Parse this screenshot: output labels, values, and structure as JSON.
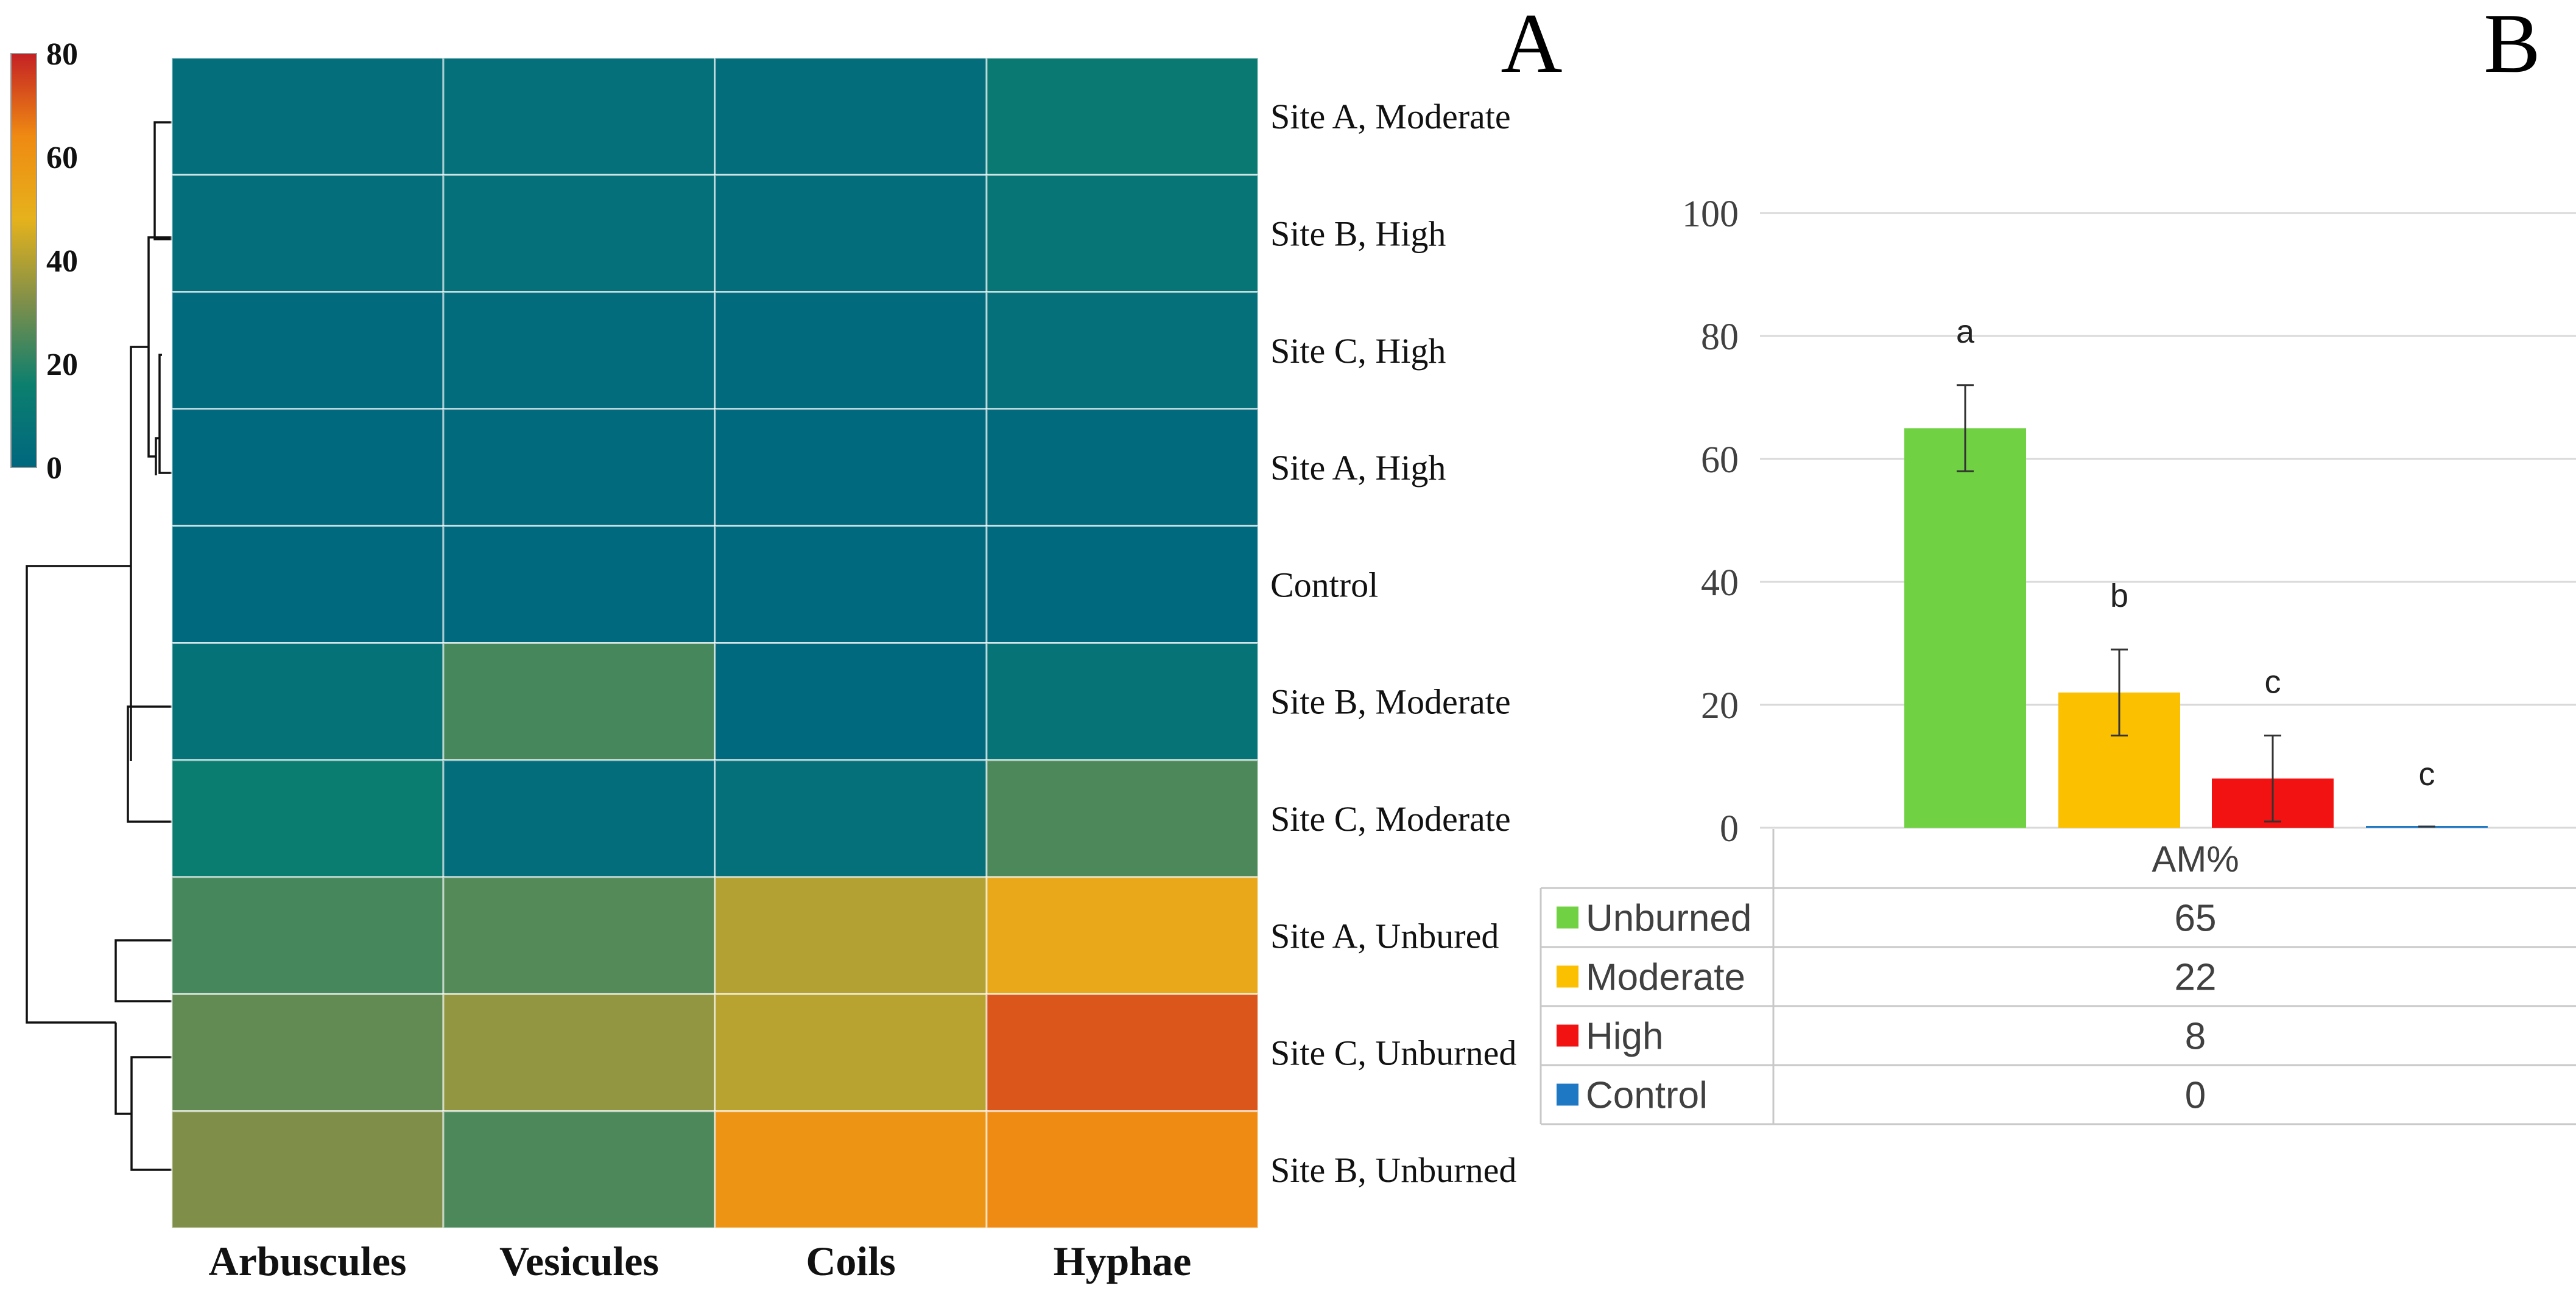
{
  "chart_data": [
    {
      "type": "heatmap",
      "panel_label": "A",
      "rows": [
        "Site A, Moderate",
        "Site B, High",
        "Site C, High",
        "Site A, High",
        "Control",
        "Site B, Moderate",
        "Site C, Moderate",
        "Site A, Unbured",
        "Site C, Unburned",
        "Site B, Unburned"
      ],
      "columns": [
        "Arbuscules",
        "Vesicules",
        "Coils",
        "Hyphae"
      ],
      "values": [
        [
          5,
          6,
          4,
          12
        ],
        [
          5,
          6,
          4,
          9
        ],
        [
          2,
          3,
          2,
          6
        ],
        [
          1,
          2,
          1,
          2
        ],
        [
          1,
          1,
          1,
          1
        ],
        [
          7,
          24,
          1,
          8
        ],
        [
          14,
          4,
          6,
          25
        ],
        [
          24,
          26,
          40,
          52
        ],
        [
          28,
          35,
          41,
          72
        ],
        [
          32,
          25,
          60,
          64
        ]
      ],
      "colorbar": {
        "min": 0,
        "max": 80,
        "ticks": [
          "80",
          "60",
          "40",
          "20",
          "0"
        ],
        "tick_values": [
          80,
          60,
          40,
          20,
          0
        ],
        "stops": [
          "#00677f",
          "#0c7f6e",
          "#7f8f4a",
          "#e6b21c",
          "#ef8a12",
          "#c42124"
        ]
      },
      "dendrogram": "rows, left side"
    },
    {
      "type": "bar",
      "panel_label": "B",
      "categories": [
        "Unburned",
        "Moderate",
        "High",
        "Control"
      ],
      "values": [
        65,
        22,
        8,
        0
      ],
      "value_labels": [
        "65",
        "22",
        "8",
        "0"
      ],
      "errors": [
        7,
        7,
        7,
        0
      ],
      "significance_letters": [
        "a",
        "b",
        "c",
        "c"
      ],
      "colors": [
        "#70d243",
        "#fbc000",
        "#f31212",
        "#1f78c4"
      ],
      "ylim": [
        0,
        100
      ],
      "yticks": [
        "0",
        "20",
        "40",
        "60",
        "80",
        "100"
      ],
      "ytick_values": [
        0,
        20,
        40,
        60,
        80,
        100
      ],
      "grid": true,
      "table_header": "AM%",
      "legend_placement": "data table below bars"
    }
  ]
}
